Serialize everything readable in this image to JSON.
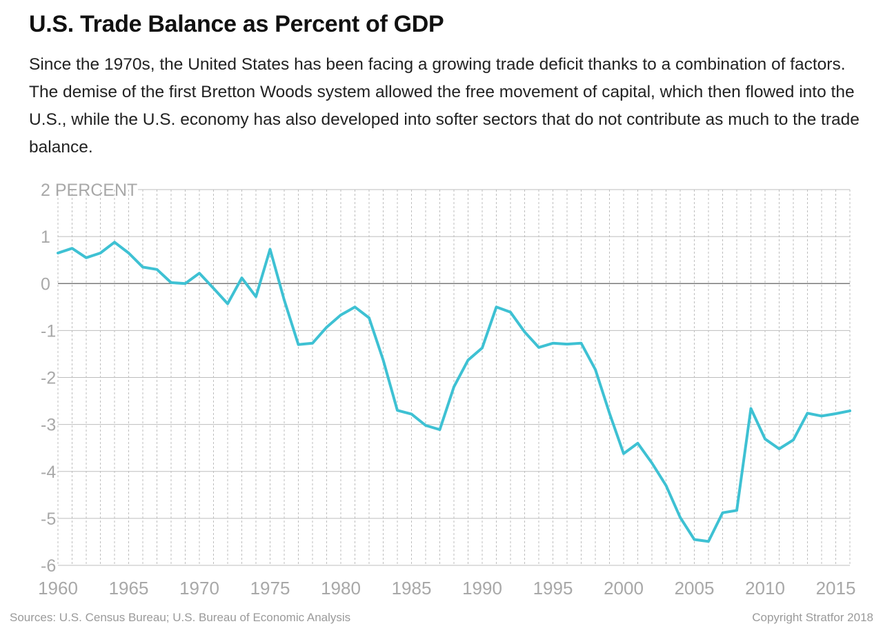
{
  "chart_data": {
    "type": "line",
    "title": "U.S. Trade Balance as Percent of GDP",
    "subtitle": "Since the 1970s, the United States has been facing a growing trade deficit thanks to a combination of factors. The demise of the first Bretton Woods system allowed the free movement of capital, which then flowed into the U.S., while the U.S. economy has also developed into softer sectors that do not contribute as much to the trade balance.",
    "xlabel": "",
    "ylabel": "",
    "xlim": [
      1960,
      2016
    ],
    "ylim": [
      -6,
      2
    ],
    "y_ticks": [
      {
        "value": 2,
        "label": "2 PERCENT"
      },
      {
        "value": 1,
        "label": "1"
      },
      {
        "value": 0,
        "label": "0"
      },
      {
        "value": -1,
        "label": "-1"
      },
      {
        "value": -2,
        "label": "-2"
      },
      {
        "value": -3,
        "label": "-3"
      },
      {
        "value": -4,
        "label": "-4"
      },
      {
        "value": -5,
        "label": "-5"
      },
      {
        "value": -6,
        "label": "-6"
      }
    ],
    "x_ticks": [
      {
        "value": 1960,
        "label": "1960"
      },
      {
        "value": 1965,
        "label": "1965"
      },
      {
        "value": 1970,
        "label": "1970"
      },
      {
        "value": 1975,
        "label": "1975"
      },
      {
        "value": 1980,
        "label": "1980"
      },
      {
        "value": 1985,
        "label": "1985"
      },
      {
        "value": 1990,
        "label": "1990"
      },
      {
        "value": 1995,
        "label": "1995"
      },
      {
        "value": 2000,
        "label": "2000"
      },
      {
        "value": 2005,
        "label": "2005"
      },
      {
        "value": 2010,
        "label": "2010"
      },
      {
        "value": 2015,
        "label": "2015"
      }
    ],
    "grid": {
      "horizontal": true,
      "vertical_yearly_dotted": true
    },
    "colors": {
      "line": "#3ec1d3",
      "grid": "#bdbdbd",
      "zero_line": "#7a7a7a",
      "tick_text": "#a8a8a8"
    },
    "series": [
      {
        "x": [
          1960,
          1961,
          1962,
          1963,
          1964,
          1965,
          1966,
          1967,
          1968,
          1969,
          1970,
          1971,
          1972,
          1973,
          1974,
          1975,
          1976,
          1977,
          1978,
          1979,
          1980,
          1981,
          1982,
          1983,
          1984,
          1985,
          1986,
          1987,
          1988,
          1989,
          1990,
          1991,
          1992,
          1993,
          1994,
          1995,
          1996,
          1997,
          1998,
          1999,
          2000,
          2001,
          2002,
          2003,
          2004,
          2005,
          2006,
          2007,
          2008,
          2009,
          2010,
          2011,
          2012,
          2013,
          2014,
          2015,
          2016
        ],
        "values": [
          0.65,
          0.75,
          0.55,
          0.65,
          0.88,
          0.65,
          0.35,
          0.3,
          0.02,
          0.0,
          0.22,
          -0.1,
          -0.43,
          0.12,
          -0.28,
          0.73,
          -0.35,
          -1.3,
          -1.27,
          -0.93,
          -0.67,
          -0.5,
          -0.73,
          -1.63,
          -2.7,
          -2.78,
          -3.02,
          -3.11,
          -2.2,
          -1.63,
          -1.37,
          -0.5,
          -0.61,
          -1.03,
          -1.36,
          -1.27,
          -1.29,
          -1.27,
          -1.83,
          -2.76,
          -3.62,
          -3.4,
          -3.82,
          -4.3,
          -4.98,
          -5.45,
          -5.49,
          -4.88,
          -4.83,
          -2.66,
          -3.31,
          -3.52,
          -3.33,
          -2.76,
          -2.82,
          -2.77,
          -2.71
        ]
      }
    ]
  },
  "footer": {
    "sources": "Sources: U.S. Census Bureau; U.S. Bureau of Economic Analysis",
    "copyright": "Copyright Stratfor 2018"
  }
}
